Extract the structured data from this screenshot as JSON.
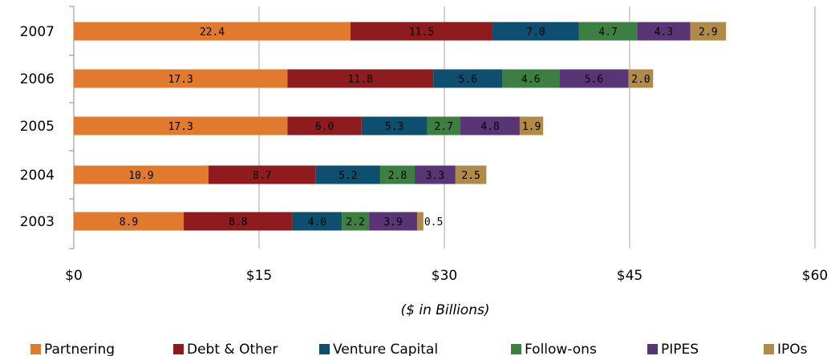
{
  "chart_data": {
    "type": "bar",
    "orientation": "horizontal",
    "stacked": true,
    "categories": [
      "2007",
      "2006",
      "2005",
      "2004",
      "2003"
    ],
    "series": [
      {
        "name": "Partnering",
        "color": "#E07A2E",
        "values": [
          22.4,
          17.3,
          17.3,
          10.9,
          8.9
        ]
      },
      {
        "name": "Debt & Other",
        "color": "#8E1B1E",
        "values": [
          11.5,
          11.8,
          6.0,
          8.7,
          8.8
        ]
      },
      {
        "name": "Venture Capital",
        "color": "#0E4E6E",
        "values": [
          7.0,
          5.6,
          5.3,
          5.2,
          4.0
        ]
      },
      {
        "name": "Follow-ons",
        "color": "#3C7F40",
        "values": [
          4.7,
          4.6,
          2.7,
          2.8,
          2.2
        ]
      },
      {
        "name": "PIPES",
        "color": "#5A3575",
        "values": [
          4.3,
          5.6,
          4.8,
          3.3,
          3.9
        ]
      },
      {
        "name": "IPOs",
        "color": "#B08A48",
        "values": [
          2.9,
          2.0,
          1.9,
          2.5,
          0.5
        ]
      }
    ],
    "xlabel": "($ in Billions)",
    "xlim": [
      0,
      60
    ],
    "xticks": [
      0,
      15,
      30,
      45,
      60
    ],
    "xtick_labels": [
      "$0",
      "$15",
      "$30",
      "$45",
      "$60"
    ],
    "grid": true,
    "legend": "bottom"
  }
}
